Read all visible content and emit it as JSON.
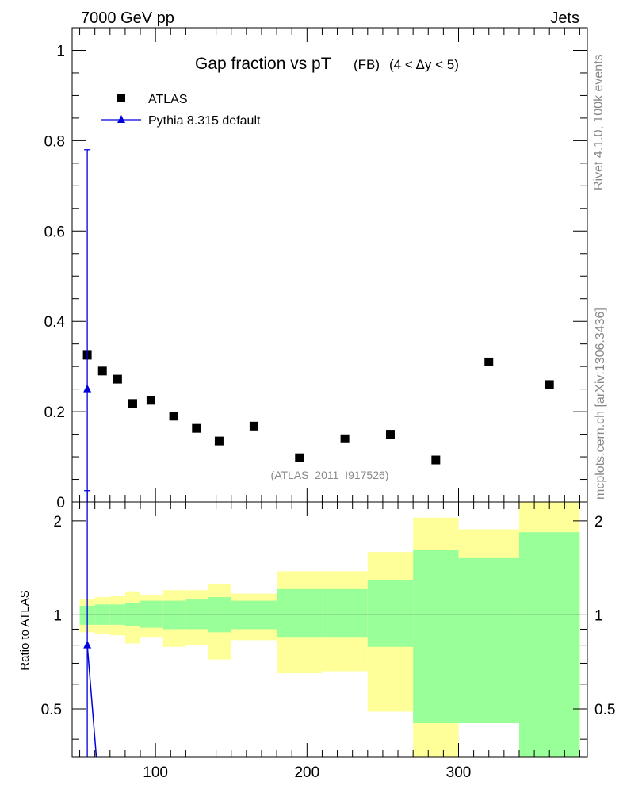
{
  "header": {
    "left": "7000 GeV pp",
    "right": "Jets"
  },
  "side_labels": {
    "rivet": "Rivet 4.1.0,  100k events",
    "mcplots": "mcplots.cern.ch [arXiv:1306.3436]"
  },
  "colors": {
    "data": "#000000",
    "mc": "#0000dd",
    "band_inner": "#99ff99",
    "band_outer": "#ffff99",
    "watermark": "#888888"
  },
  "chart_data": [
    {
      "type": "scatter",
      "panel": "main",
      "title": "Gap fraction vs pT",
      "title_suffix": "(FB)",
      "title_cut": "(4 < Δy < 5)",
      "watermark": "(ATLAS_2011_I917526)",
      "xlim": [
        45,
        385
      ],
      "ylim": [
        0,
        1.05
      ],
      "yticks": [
        0,
        0.2,
        0.4,
        0.6,
        0.8,
        1
      ],
      "ytick_labels": [
        "0",
        "0.2",
        "0.4",
        "0.6",
        "0.8",
        "1"
      ],
      "legend": [
        "ATLAS",
        "Pythia 8.315 default"
      ],
      "series": [
        {
          "name": "ATLAS",
          "x": [
            55,
            65,
            75,
            85,
            97,
            112,
            127,
            142,
            165,
            195,
            225,
            255,
            285,
            320,
            360
          ],
          "y": [
            0.325,
            0.29,
            0.272,
            0.218,
            0.225,
            0.19,
            0.163,
            0.135,
            0.168,
            0.098,
            0.14,
            0.15,
            0.093,
            0.31,
            0.26
          ]
        },
        {
          "name": "Pythia 8.315 default",
          "x": [
            55
          ],
          "y": [
            0.25
          ],
          "yerr_low": [
            0.25
          ],
          "yerr_high": [
            0.53
          ]
        }
      ]
    },
    {
      "type": "line",
      "panel": "ratio",
      "ylabel": "Ratio to ATLAS",
      "xlim": [
        45,
        385
      ],
      "ylim": [
        0.35,
        2.3
      ],
      "yticks": [
        0.5,
        1,
        2
      ],
      "ytick_labels": [
        "0.5",
        "1",
        "2"
      ],
      "xticks": [
        100,
        200,
        300
      ],
      "xtick_labels": [
        "100",
        "200",
        "300"
      ],
      "bands": {
        "edges": [
          50,
          60,
          70,
          80,
          90,
          105,
          120,
          135,
          150,
          180,
          210,
          240,
          270,
          300,
          340,
          380
        ],
        "inner_low": [
          0.93,
          0.93,
          0.93,
          0.92,
          0.91,
          0.9,
          0.9,
          0.88,
          0.9,
          0.85,
          0.85,
          0.79,
          0.45,
          0.45,
          0.35
        ],
        "inner_high": [
          1.07,
          1.08,
          1.08,
          1.09,
          1.11,
          1.11,
          1.12,
          1.14,
          1.11,
          1.21,
          1.21,
          1.29,
          1.61,
          1.52,
          1.84
        ],
        "outer_low": [
          0.88,
          0.87,
          0.86,
          0.81,
          0.85,
          0.79,
          0.8,
          0.72,
          0.83,
          0.65,
          0.66,
          0.49,
          0.35,
          0.59,
          0.35
        ],
        "outer_high": [
          1.12,
          1.14,
          1.15,
          1.19,
          1.16,
          1.2,
          1.2,
          1.26,
          1.17,
          1.38,
          1.38,
          1.59,
          2.05,
          1.88,
          2.3
        ]
      },
      "series": [
        {
          "name": "Pythia 8.315 default",
          "x": [
            55,
            61
          ],
          "y": [
            0.8,
            0.35
          ],
          "yerr_low": [
            0.45
          ],
          "yerr_high": [
            1.7
          ]
        }
      ]
    }
  ]
}
